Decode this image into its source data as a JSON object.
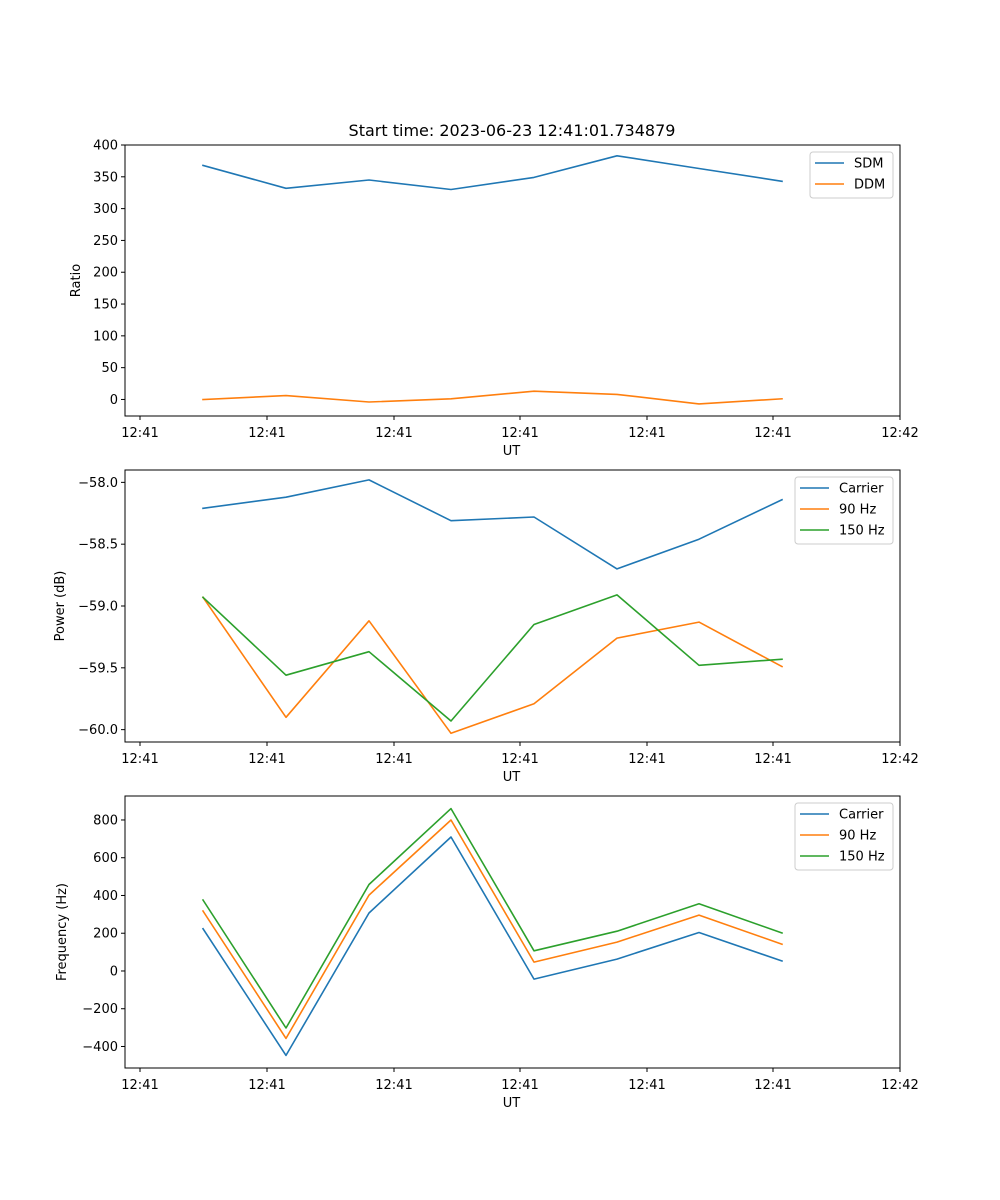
{
  "figure_title": "Start time: 2023-06-23 12:41:01.734879",
  "chart_data": [
    {
      "type": "line",
      "title": "Start time: 2023-06-23 12:41:01.734879",
      "xlabel": "UT",
      "ylabel": "Ratio",
      "x_tick_labels": [
        "12:41",
        "12:41",
        "12:41",
        "12:41",
        "12:41",
        "12:41",
        "12:42"
      ],
      "y_ticks": [
        0,
        50,
        100,
        150,
        200,
        250,
        300,
        350,
        400
      ],
      "ylim": [
        -26,
        400
      ],
      "legend_position": "top-right",
      "series": [
        {
          "name": "SDM",
          "color": "#1f77b4",
          "values": [
            368,
            332,
            345,
            330,
            349,
            383,
            363,
            343
          ]
        },
        {
          "name": "DDM",
          "color": "#ff7f0e",
          "values": [
            0,
            6,
            -4,
            1,
            13,
            8,
            -7,
            1
          ]
        }
      ]
    },
    {
      "type": "line",
      "title": "",
      "xlabel": "UT",
      "ylabel": "Power (dB)",
      "x_tick_labels": [
        "12:41",
        "12:41",
        "12:41",
        "12:41",
        "12:41",
        "12:41",
        "12:42"
      ],
      "y_ticks": [
        -60.0,
        -59.5,
        -59.0,
        -58.5,
        -58.0
      ],
      "y_tick_labels": [
        "−60.0",
        "−59.5",
        "−59.0",
        "−58.5",
        "−58.0"
      ],
      "ylim": [
        -60.1,
        -57.9
      ],
      "legend_position": "top-right",
      "series": [
        {
          "name": "Carrier",
          "color": "#1f77b4",
          "values": [
            -58.21,
            -58.12,
            -57.98,
            -58.31,
            -58.28,
            -58.7,
            -58.46,
            -58.14
          ]
        },
        {
          "name": "90 Hz",
          "color": "#ff7f0e",
          "values": [
            -58.93,
            -59.9,
            -59.12,
            -60.03,
            -59.79,
            -59.26,
            -59.13,
            -59.49
          ]
        },
        {
          "name": "150 Hz",
          "color": "#2ca02c",
          "values": [
            -58.93,
            -59.56,
            -59.37,
            -59.93,
            -59.15,
            -58.91,
            -59.48,
            -59.43
          ]
        }
      ]
    },
    {
      "type": "line",
      "title": "",
      "xlabel": "UT",
      "ylabel": "Frequency (Hz)",
      "x_tick_labels": [
        "12:41",
        "12:41",
        "12:41",
        "12:41",
        "12:41",
        "12:41",
        "12:42"
      ],
      "y_ticks": [
        -400,
        -200,
        0,
        200,
        400,
        600,
        800
      ],
      "y_tick_labels": [
        "−400",
        "−200",
        "0",
        "200",
        "400",
        "600",
        "800"
      ],
      "ylim": [
        -514,
        927
      ],
      "legend_position": "top-right",
      "series": [
        {
          "name": "Carrier",
          "color": "#1f77b4",
          "values": [
            224,
            -447,
            307,
            710,
            -43,
            63,
            204,
            53
          ]
        },
        {
          "name": "90 Hz",
          "color": "#ff7f0e",
          "values": [
            318,
            -357,
            402,
            800,
            47,
            153,
            296,
            142
          ]
        },
        {
          "name": "150 Hz",
          "color": "#2ca02c",
          "values": [
            376,
            -302,
            458,
            860,
            107,
            211,
            356,
            201
          ]
        }
      ]
    }
  ]
}
